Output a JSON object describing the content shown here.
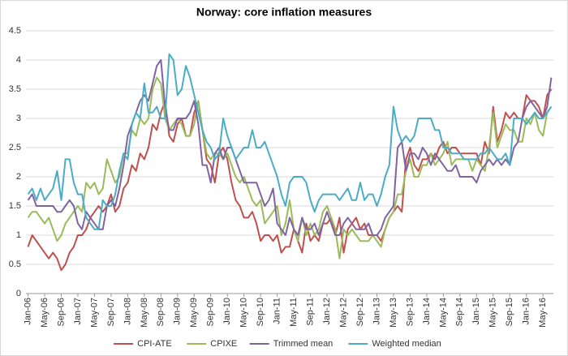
{
  "chart_data": {
    "type": "line",
    "title": "Norway: core inflation measures",
    "categories": [
      "Jan-06",
      null,
      null,
      null,
      "May-06",
      null,
      null,
      null,
      "Sep-06",
      null,
      null,
      null,
      "Jan-07",
      null,
      null,
      null,
      "May-07",
      null,
      null,
      null,
      "Sep-07",
      null,
      null,
      null,
      "Jan-08",
      null,
      null,
      null,
      "May-08",
      null,
      null,
      null,
      "Sep-08",
      null,
      null,
      null,
      "Jan-09",
      null,
      null,
      null,
      "May-09",
      null,
      null,
      null,
      "Sep-09",
      null,
      null,
      null,
      "Jan-10",
      null,
      null,
      null,
      "May-10",
      null,
      null,
      null,
      "Sep-10",
      null,
      null,
      null,
      "Jan-11",
      null,
      null,
      null,
      "May-11",
      null,
      null,
      null,
      "Sep-11",
      null,
      null,
      null,
      "Jan-12",
      null,
      null,
      null,
      "May-12",
      null,
      null,
      null,
      "Sep-12",
      null,
      null,
      null,
      "Jan-13",
      null,
      null,
      null,
      "May-13",
      null,
      null,
      null,
      "Sep-13",
      null,
      null,
      null,
      "Jan-14",
      null,
      null,
      null,
      "May-14",
      null,
      null,
      null,
      "Sep-14",
      null,
      null,
      null,
      "Jan-15",
      null,
      null,
      null,
      "May-15",
      null,
      null,
      null,
      "Sep-15",
      null,
      null,
      null,
      "Jan-16",
      null,
      null,
      null,
      "May-16",
      null,
      null
    ],
    "series": [
      {
        "name": "CPI-ATE",
        "color": "#c0504d",
        "values": [
          0.8,
          1.0,
          0.9,
          0.8,
          0.7,
          0.6,
          0.7,
          0.6,
          0.4,
          0.5,
          0.7,
          0.8,
          1.0,
          1.0,
          1.1,
          1.3,
          1.4,
          1.5,
          1.4,
          1.5,
          1.7,
          1.4,
          1.5,
          1.8,
          1.9,
          2.2,
          2.1,
          2.4,
          2.3,
          2.5,
          2.9,
          2.8,
          3.1,
          3.3,
          2.7,
          2.6,
          2.9,
          3.0,
          2.7,
          2.7,
          3.1,
          3.3,
          2.8,
          2.3,
          2.2,
          1.9,
          2.4,
          2.5,
          2.3,
          1.9,
          1.6,
          1.5,
          1.3,
          1.3,
          1.4,
          1.2,
          0.9,
          1.0,
          1.0,
          0.9,
          1.0,
          0.7,
          0.8,
          0.8,
          1.1,
          0.9,
          0.7,
          1.2,
          0.9,
          1.0,
          0.9,
          1.2,
          1.2,
          1.3,
          1.0,
          1.3,
          0.7,
          1.1,
          1.2,
          1.3,
          1.1,
          1.2,
          1.0,
          1.0,
          1.0,
          0.9,
          1.1,
          1.3,
          1.4,
          1.5,
          1.4,
          2.3,
          2.5,
          2.2,
          2.1,
          2.3,
          2.3,
          2.4,
          2.3,
          2.5,
          2.6,
          2.4,
          2.5,
          2.5,
          2.4,
          2.4,
          2.4,
          2.4,
          2.4,
          2.2,
          2.6,
          2.4,
          3.2,
          2.6,
          2.8,
          3.1,
          3.0,
          3.1,
          3.0,
          3.0,
          3.4,
          3.3,
          3.3,
          3.2,
          3.0,
          3.4,
          3.5
        ]
      },
      {
        "name": "CPIXE",
        "color": "#9bbb59",
        "values": [
          1.3,
          1.4,
          1.4,
          1.3,
          1.2,
          1.3,
          1.1,
          0.9,
          1.0,
          1.2,
          1.3,
          1.4,
          1.5,
          1.4,
          1.9,
          1.8,
          1.9,
          1.7,
          1.8,
          2.3,
          2.1,
          1.9,
          2.0,
          2.4,
          2.4,
          2.8,
          2.7,
          3.0,
          2.9,
          3.0,
          3.5,
          3.7,
          3.6,
          3.0,
          2.8,
          2.9,
          3.0,
          2.9,
          2.7,
          2.7,
          2.9,
          3.3,
          2.8,
          2.4,
          2.3,
          2.4,
          2.4,
          2.3,
          2.4,
          2.2,
          2.0,
          1.9,
          2.0,
          1.8,
          1.6,
          1.5,
          1.6,
          1.2,
          1.3,
          1.4,
          1.5,
          1.0,
          1.2,
          1.6,
          1.1,
          0.9,
          1.3,
          1.0,
          1.2,
          1.0,
          1.1,
          1.4,
          1.5,
          1.3,
          1.1,
          0.6,
          1.1,
          1.0,
          1.1,
          1.0,
          0.9,
          0.9,
          0.9,
          1.0,
          0.9,
          0.8,
          1.1,
          1.3,
          1.4,
          1.7,
          1.7,
          2.1,
          2.3,
          2.0,
          2.0,
          2.2,
          2.2,
          2.4,
          2.2,
          2.3,
          2.4,
          2.6,
          2.2,
          2.3,
          2.3,
          2.3,
          2.3,
          2.1,
          2.3,
          2.2,
          2.1,
          2.5,
          3.1,
          2.5,
          2.7,
          2.9,
          2.8,
          2.8,
          2.6,
          2.6,
          3.0,
          2.9,
          3.1,
          2.8,
          2.7,
          3.1,
          3.2
        ]
      },
      {
        "name": "Trimmed mean",
        "color": "#8064a2",
        "values": [
          1.6,
          1.7,
          1.5,
          1.5,
          1.5,
          1.5,
          1.5,
          1.4,
          1.4,
          1.5,
          1.6,
          1.5,
          1.2,
          1.1,
          1.4,
          1.3,
          1.2,
          1.1,
          1.1,
          1.5,
          1.6,
          1.5,
          1.8,
          2.2,
          2.7,
          2.9,
          3.1,
          3.3,
          3.4,
          3.3,
          3.6,
          3.9,
          4.0,
          3.2,
          2.8,
          2.8,
          3.0,
          3.0,
          3.0,
          3.1,
          3.3,
          2.9,
          2.2,
          2.2,
          1.9,
          2.4,
          2.5,
          2.3,
          2.5,
          2.5,
          2.3,
          2.1,
          1.9,
          1.9,
          1.9,
          1.9,
          1.7,
          1.5,
          1.6,
          1.8,
          1.2,
          1.1,
          1.0,
          1.3,
          1.1,
          1.0,
          1.3,
          1.1,
          1.1,
          1.2,
          1.0,
          1.2,
          1.4,
          1.2,
          1.0,
          1.0,
          1.2,
          1.3,
          1.2,
          1.1,
          1.1,
          1.1,
          1.2,
          1.0,
          1.0,
          1.1,
          1.3,
          1.4,
          1.5,
          2.5,
          2.6,
          2.1,
          2.4,
          2.4,
          2.3,
          2.5,
          2.4,
          2.2,
          2.4,
          2.3,
          2.2,
          2.1,
          2.1,
          2.2,
          2.0,
          2.0,
          2.0,
          2.0,
          1.9,
          2.1,
          2.2,
          2.3,
          2.2,
          2.3,
          2.2,
          2.3,
          2.2,
          2.5,
          2.6,
          3.0,
          3.2,
          3.3,
          3.2,
          3.1,
          3.0,
          3.2,
          3.7
        ]
      },
      {
        "name": "Weighted median",
        "color": "#4bacc6",
        "values": [
          1.7,
          1.8,
          1.6,
          1.8,
          1.6,
          1.7,
          1.8,
          2.1,
          1.6,
          2.3,
          2.3,
          1.9,
          1.7,
          1.7,
          1.3,
          1.2,
          1.1,
          1.1,
          1.6,
          1.5,
          1.5,
          1.7,
          2.1,
          2.4,
          2.3,
          2.9,
          3.1,
          3.0,
          3.6,
          3.1,
          3.1,
          3.2,
          3.0,
          3.0,
          4.1,
          4.0,
          3.4,
          3.5,
          3.9,
          3.7,
          3.4,
          3.1,
          2.8,
          2.6,
          2.5,
          2.3,
          2.4,
          3.0,
          2.7,
          2.5,
          2.3,
          2.4,
          2.5,
          2.5,
          2.8,
          2.5,
          2.5,
          2.6,
          2.4,
          2.2,
          2.0,
          1.7,
          1.5,
          1.9,
          2.0,
          2.0,
          2.0,
          1.9,
          1.6,
          1.4,
          1.6,
          1.7,
          1.7,
          1.7,
          1.7,
          1.6,
          1.7,
          1.8,
          1.6,
          1.6,
          1.9,
          1.6,
          1.7,
          1.7,
          1.5,
          1.7,
          2.0,
          2.2,
          3.2,
          2.8,
          2.6,
          2.7,
          2.6,
          2.7,
          3.0,
          3.0,
          3.0,
          3.0,
          2.8,
          2.8,
          2.5,
          2.5,
          2.4,
          2.4,
          2.4,
          2.3,
          2.3,
          2.3,
          2.3,
          2.4,
          2.4,
          2.5,
          2.4,
          2.3,
          2.3,
          2.4,
          2.2,
          3.0,
          3.0,
          3.0,
          2.9,
          3.0,
          3.1,
          3.0,
          3.0,
          3.1,
          3.2
        ]
      }
    ],
    "ylim": [
      0,
      4.5
    ],
    "yticks": [
      0,
      0.5,
      1,
      1.5,
      2,
      2.5,
      3,
      3.5,
      4,
      4.5
    ],
    "grid": true,
    "legend": "bottom"
  }
}
